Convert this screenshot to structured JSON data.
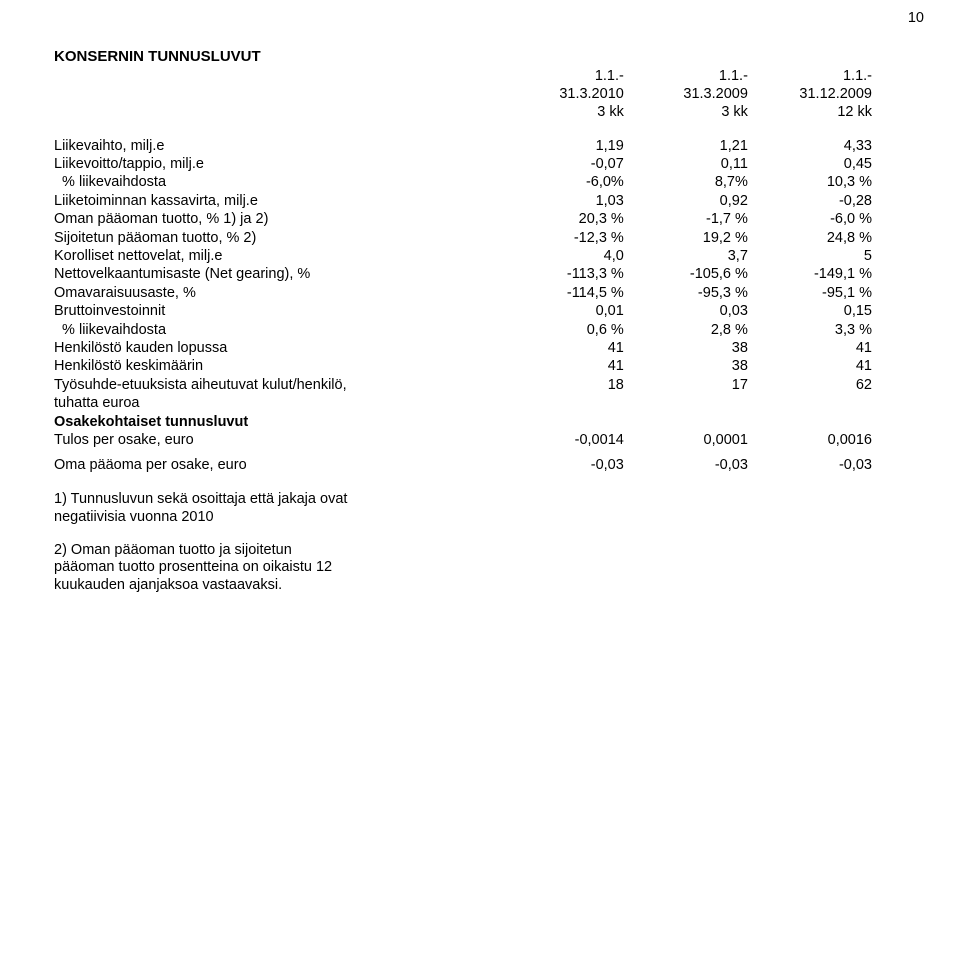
{
  "page_number": "10",
  "title": "KONSERNIN TUNNUSLUVUT",
  "columns": {
    "h1a": "1.1.-",
    "h1b": "31.3.2010",
    "h1c": "3 kk",
    "h2a": "1.1.-",
    "h2b": "31.3.2009",
    "h2c": "3 kk",
    "h3a": "1.1.-",
    "h3b": "31.12.2009",
    "h3c": "12 kk"
  },
  "rows": [
    {
      "label": "Liikevaihto, milj.e",
      "v": [
        "1,19",
        "1,21",
        "4,33"
      ]
    },
    {
      "label": "Liikevoitto/tappio, milj.e",
      "v": [
        "-0,07",
        "0,11",
        "0,45"
      ]
    },
    {
      "label": "  % liikevaihdosta",
      "v": [
        "-6,0%",
        "8,7%",
        "10,3 %"
      ]
    },
    {
      "label": "Liiketoiminnan kassavirta, milj.e",
      "v": [
        "1,03",
        "0,92",
        "-0,28"
      ]
    },
    {
      "label": "Oman pääoman tuotto, %   1) ja 2)",
      "v": [
        "20,3 %",
        "-1,7 %",
        "-6,0 %"
      ]
    },
    {
      "label": "Sijoitetun pääoman tuotto, %   2)",
      "v": [
        "-12,3 %",
        "19,2 %",
        "24,8 %"
      ]
    },
    {
      "label": "Korolliset nettovelat, milj.e",
      "v": [
        "4,0",
        "3,7",
        "5"
      ]
    },
    {
      "label": "Nettovelkaantumisaste (Net gearing), %",
      "v": [
        "-113,3 %",
        "-105,6 %",
        "-149,1 %"
      ]
    },
    {
      "label": "Omavaraisuusaste, %",
      "v": [
        "-114,5 %",
        "-95,3 %",
        "-95,1 %"
      ]
    },
    {
      "label": "Bruttoinvestoinnit",
      "v": [
        "0,01",
        "0,03",
        "0,15"
      ]
    },
    {
      "label": "  % liikevaihdosta",
      "v": [
        "0,6 %",
        "2,8 %",
        "3,3 %"
      ]
    },
    {
      "label": "Henkilöstö kauden lopussa",
      "v": [
        "41",
        "38",
        "41"
      ]
    },
    {
      "label": "Henkilöstö keskimäärin",
      "v": [
        "41",
        "38",
        "41"
      ]
    },
    {
      "label": "Työsuhde-etuuksista aiheutuvat kulut/henkilö, tuhatta euroa",
      "v": [
        "18",
        "17",
        "62"
      ],
      "wrap": true
    }
  ],
  "section_header": "Osakekohtaiset tunnusluvut",
  "rows2": [
    {
      "label": "Tulos per osake, euro",
      "v": [
        "-0,0014",
        "0,0001",
        "0,0016"
      ]
    },
    {
      "label": "Oma pääoma per osake, euro",
      "v": [
        "-0,03",
        "-0,03",
        "-0,03"
      ]
    }
  ],
  "notes": [
    "1) Tunnusluvun sekä osoittaja että jakaja ovat negatiivisia vuonna 2010",
    "2)  Oman pääoman tuotto ja sijoitetun pääoman tuotto prosentteina on oikaistu 12 kuukauden ajanjaksoa vastaavaksi."
  ],
  "note_widths": [
    "340px",
    "300px"
  ]
}
